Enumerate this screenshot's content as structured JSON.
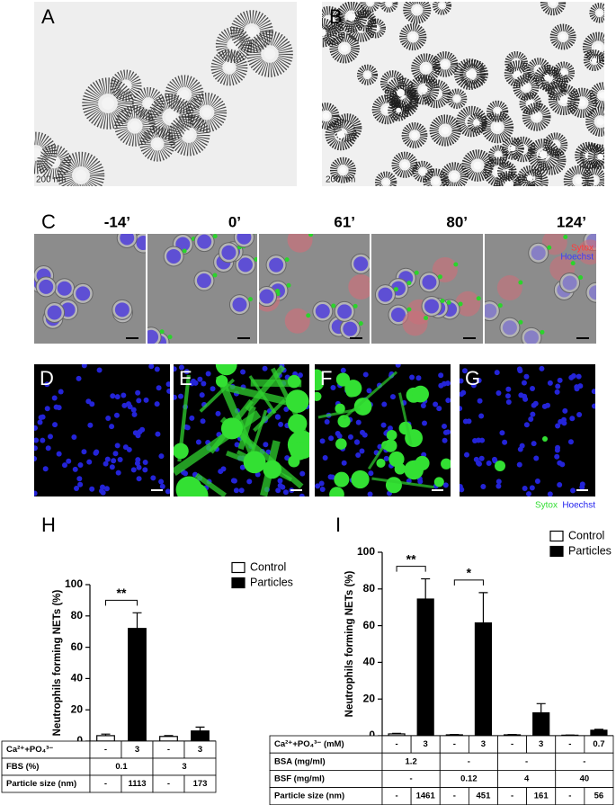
{
  "micrographs": {
    "A": {
      "label": "A",
      "scale_bar": "200 nm"
    },
    "B": {
      "label": "B",
      "scale_bar": "200 nm"
    },
    "C": {
      "label": "C",
      "timepoints": [
        "-14’",
        "0’",
        "61’",
        "80’",
        "124’"
      ],
      "legend": [
        {
          "text": "Sytox",
          "color": "#ff3b3b"
        },
        {
          "text": "Hoechst",
          "color": "#3a3aff"
        }
      ]
    },
    "D": {
      "label": "D"
    },
    "E": {
      "label": "E"
    },
    "F": {
      "label": "F"
    },
    "G": {
      "label": "G"
    },
    "DG_legend": [
      {
        "text": "Sytox",
        "color": "#33dd33"
      },
      {
        "text": "Hoechst",
        "color": "#2222ee"
      }
    ]
  },
  "chart_data": [
    {
      "type": "bar",
      "panel_label": "H",
      "ylabel": "Neutrophils forming NETs (%)",
      "ylim": [
        0,
        100
      ],
      "yticks": [
        0,
        20,
        40,
        60,
        80,
        100
      ],
      "legend": "upper right",
      "series": [
        {
          "name": "Control",
          "color": "#ffffff",
          "values": [
            3.5,
            3
          ],
          "errors": [
            1,
            0.5
          ]
        },
        {
          "name": "Particles",
          "color": "#000000",
          "values": [
            72,
            6.5
          ],
          "errors": [
            10,
            2.5
          ]
        }
      ],
      "significance": [
        {
          "group": 0,
          "label": "**"
        }
      ],
      "table": [
        {
          "label": "Ca²⁺+PO₄³⁻",
          "cells": [
            "-",
            "3",
            "-",
            "3"
          ]
        },
        {
          "label": "FBS (%)",
          "cells": [
            "0.1",
            "3"
          ]
        },
        {
          "label": "Particle size (nm)",
          "cells": [
            "-",
            "1113",
            "-",
            "173"
          ]
        }
      ]
    },
    {
      "type": "bar",
      "panel_label": "I",
      "ylabel": "Neutrophils forming NETs (%)",
      "ylim": [
        0,
        100
      ],
      "yticks": [
        0,
        20,
        40,
        60,
        80,
        100
      ],
      "legend": "upper right",
      "series": [
        {
          "name": "Control",
          "color": "#ffffff",
          "values": [
            1,
            0.5,
            0.5,
            0.3
          ],
          "errors": [
            0.3,
            0.2,
            0.2,
            0.1
          ]
        },
        {
          "name": "Particles",
          "color": "#000000",
          "values": [
            74.5,
            61.5,
            12.5,
            3
          ],
          "errors": [
            11,
            16.5,
            5,
            0.5
          ]
        }
      ],
      "significance": [
        {
          "group": 0,
          "label": "**"
        },
        {
          "group": 1,
          "label": "*"
        }
      ],
      "table": [
        {
          "label": "Ca²⁺+PO₄³⁻ (mM)",
          "cells": [
            "-",
            "3",
            "-",
            "3",
            "-",
            "3",
            "-",
            "0.7"
          ]
        },
        {
          "label": "BSA (mg/ml)",
          "cells": [
            "1.2",
            "-",
            "-",
            "-"
          ]
        },
        {
          "label": "BSF (mg/ml)",
          "cells": [
            "-",
            "0.12",
            "4",
            "40"
          ]
        },
        {
          "label": "Particle size (nm)",
          "cells": [
            "-",
            "1461",
            "-",
            "451",
            "-",
            "161",
            "-",
            "56"
          ]
        }
      ]
    }
  ]
}
